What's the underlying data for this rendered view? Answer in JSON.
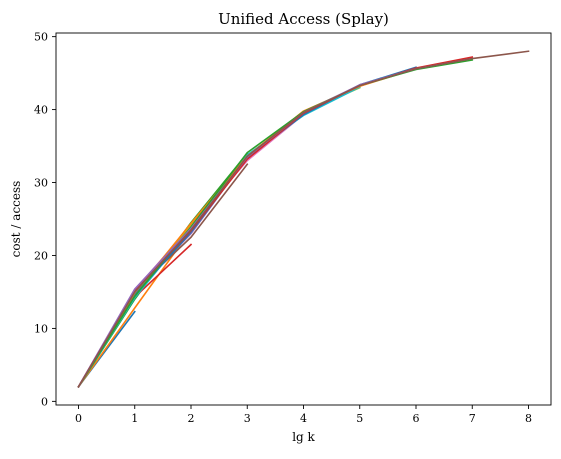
{
  "chart_data": {
    "type": "line",
    "title": "Unified Access (Splay)",
    "xlabel": "lg k",
    "ylabel": "cost / access",
    "xlim": [
      -0.4,
      8.4
    ],
    "ylim": [
      -0.5,
      50.5
    ],
    "xticks": [
      0,
      1,
      2,
      3,
      4,
      5,
      6,
      7,
      8
    ],
    "yticks": [
      0,
      10,
      20,
      30,
      40,
      50
    ],
    "grid": false,
    "legend": "none",
    "series": [
      {
        "color": "#1f77b4",
        "x": [
          0,
          1
        ],
        "y": [
          2.0,
          12.3
        ]
      },
      {
        "color": "#ff7f0e",
        "x": [
          0,
          1,
          2
        ],
        "y": [
          2.0,
          12.8,
          23.5
        ]
      },
      {
        "color": "#2ca02c",
        "x": [
          0,
          1,
          2,
          3
        ],
        "y": [
          2.0,
          14.0,
          24.5,
          34.0
        ]
      },
      {
        "color": "#d62728",
        "x": [
          0,
          1,
          2
        ],
        "y": [
          2.0,
          14.3,
          21.5
        ]
      },
      {
        "color": "#9467bd",
        "x": [
          0,
          1,
          2,
          3,
          4
        ],
        "y": [
          2.0,
          15.0,
          23.0,
          33.5,
          39.5
        ]
      },
      {
        "color": "#8c564b",
        "x": [
          0,
          1,
          2,
          3
        ],
        "y": [
          2.0,
          15.2,
          22.5,
          32.5
        ]
      },
      {
        "color": "#e377c2",
        "x": [
          0,
          1,
          2,
          3,
          4,
          5
        ],
        "y": [
          2.0,
          15.3,
          24.0,
          33.0,
          39.3,
          43.2
        ]
      },
      {
        "color": "#7f7f7f",
        "x": [
          0,
          1,
          2,
          3,
          4,
          5
        ],
        "y": [
          2.0,
          14.8,
          23.8,
          33.3,
          39.4,
          43.3
        ]
      },
      {
        "color": "#bcbd22",
        "x": [
          0,
          1,
          2,
          3,
          4,
          5
        ],
        "y": [
          2.0,
          14.5,
          24.2,
          33.7,
          39.6,
          43.0
        ]
      },
      {
        "color": "#17becf",
        "x": [
          0,
          1,
          2,
          3,
          4,
          5
        ],
        "y": [
          2.0,
          14.2,
          23.6,
          33.8,
          39.2,
          43.1
        ]
      },
      {
        "color": "#1f77b4",
        "x": [
          0,
          1,
          2,
          3,
          4,
          5,
          6
        ],
        "y": [
          2.0,
          14.6,
          23.2,
          33.4,
          39.3,
          43.4,
          45.8
        ]
      },
      {
        "color": "#ff7f0e",
        "x": [
          0,
          1,
          2,
          3,
          4,
          5,
          6
        ],
        "y": [
          2.0,
          14.9,
          24.4,
          33.6,
          39.8,
          43.2,
          45.6
        ]
      },
      {
        "color": "#2ca02c",
        "x": [
          0,
          1,
          2,
          3,
          4,
          5,
          6,
          7
        ],
        "y": [
          2.0,
          14.4,
          23.9,
          34.1,
          39.7,
          43.3,
          45.5,
          46.8
        ]
      },
      {
        "color": "#d62728",
        "x": [
          0,
          1,
          2,
          3,
          4,
          5,
          6,
          7
        ],
        "y": [
          2.0,
          15.1,
          23.4,
          33.2,
          39.5,
          43.3,
          45.7,
          47.2
        ]
      },
      {
        "color": "#9467bd",
        "x": [
          0,
          1,
          2,
          3,
          4,
          5,
          6,
          7
        ],
        "y": [
          2.0,
          15.4,
          23.7,
          33.5,
          39.6,
          43.4,
          45.6,
          47.0
        ]
      },
      {
        "color": "#8c564b",
        "x": [
          0,
          1,
          2,
          3,
          4,
          5,
          6,
          7,
          8
        ],
        "y": [
          2.0,
          15.0,
          23.5,
          33.6,
          39.6,
          43.3,
          45.6,
          47.0,
          48.0
        ]
      }
    ]
  }
}
